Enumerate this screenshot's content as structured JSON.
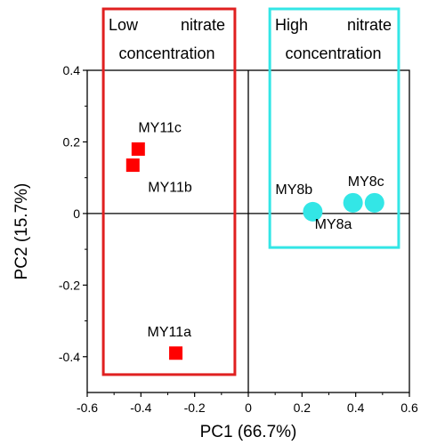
{
  "chart_data": {
    "type": "scatter",
    "xlabel": "PC1 (66.7%)",
    "ylabel": "PC2 (15.7%)",
    "xlim": [
      -0.6,
      0.6
    ],
    "ylim": [
      -0.5,
      0.4
    ],
    "xticks": [
      "-0.6",
      "-0.4",
      "-0.2",
      "0",
      "0.2",
      "0.4",
      "0.6"
    ],
    "yticks": [
      "0.4",
      "0.2",
      "0",
      "-0.2",
      "-0.4"
    ],
    "grid": false,
    "zero_lines": true,
    "series": [
      {
        "marker": "square",
        "color": "#ff0000",
        "points": [
          {
            "label": "MY11a",
            "x": -0.27,
            "y": -0.39
          },
          {
            "label": "MY11b",
            "x": -0.43,
            "y": 0.135
          },
          {
            "label": "MY11c",
            "x": -0.41,
            "y": 0.18
          }
        ]
      },
      {
        "marker": "circle",
        "color": "#33e6e6",
        "points": [
          {
            "label": "MY8a",
            "x": 0.39,
            "y": 0.03
          },
          {
            "label": "MY8b",
            "x": 0.24,
            "y": 0.005
          },
          {
            "label": "MY8c",
            "x": 0.47,
            "y": 0.03
          }
        ]
      }
    ],
    "group_boxes": [
      {
        "label_line1_left": "Low",
        "label_line1_right": "nitrate",
        "label_line2": "concentration",
        "color": "#e02020",
        "x_range": [
          -0.54,
          -0.05
        ],
        "y_range": [
          -0.45,
          0.5
        ]
      },
      {
        "label_line1_left": "High",
        "label_line1_right": "nitrate",
        "label_line2": "concentration",
        "color": "#33e6e6",
        "x_range": [
          0.08,
          0.56
        ],
        "y_range": [
          -0.095,
          0.5
        ]
      }
    ]
  }
}
